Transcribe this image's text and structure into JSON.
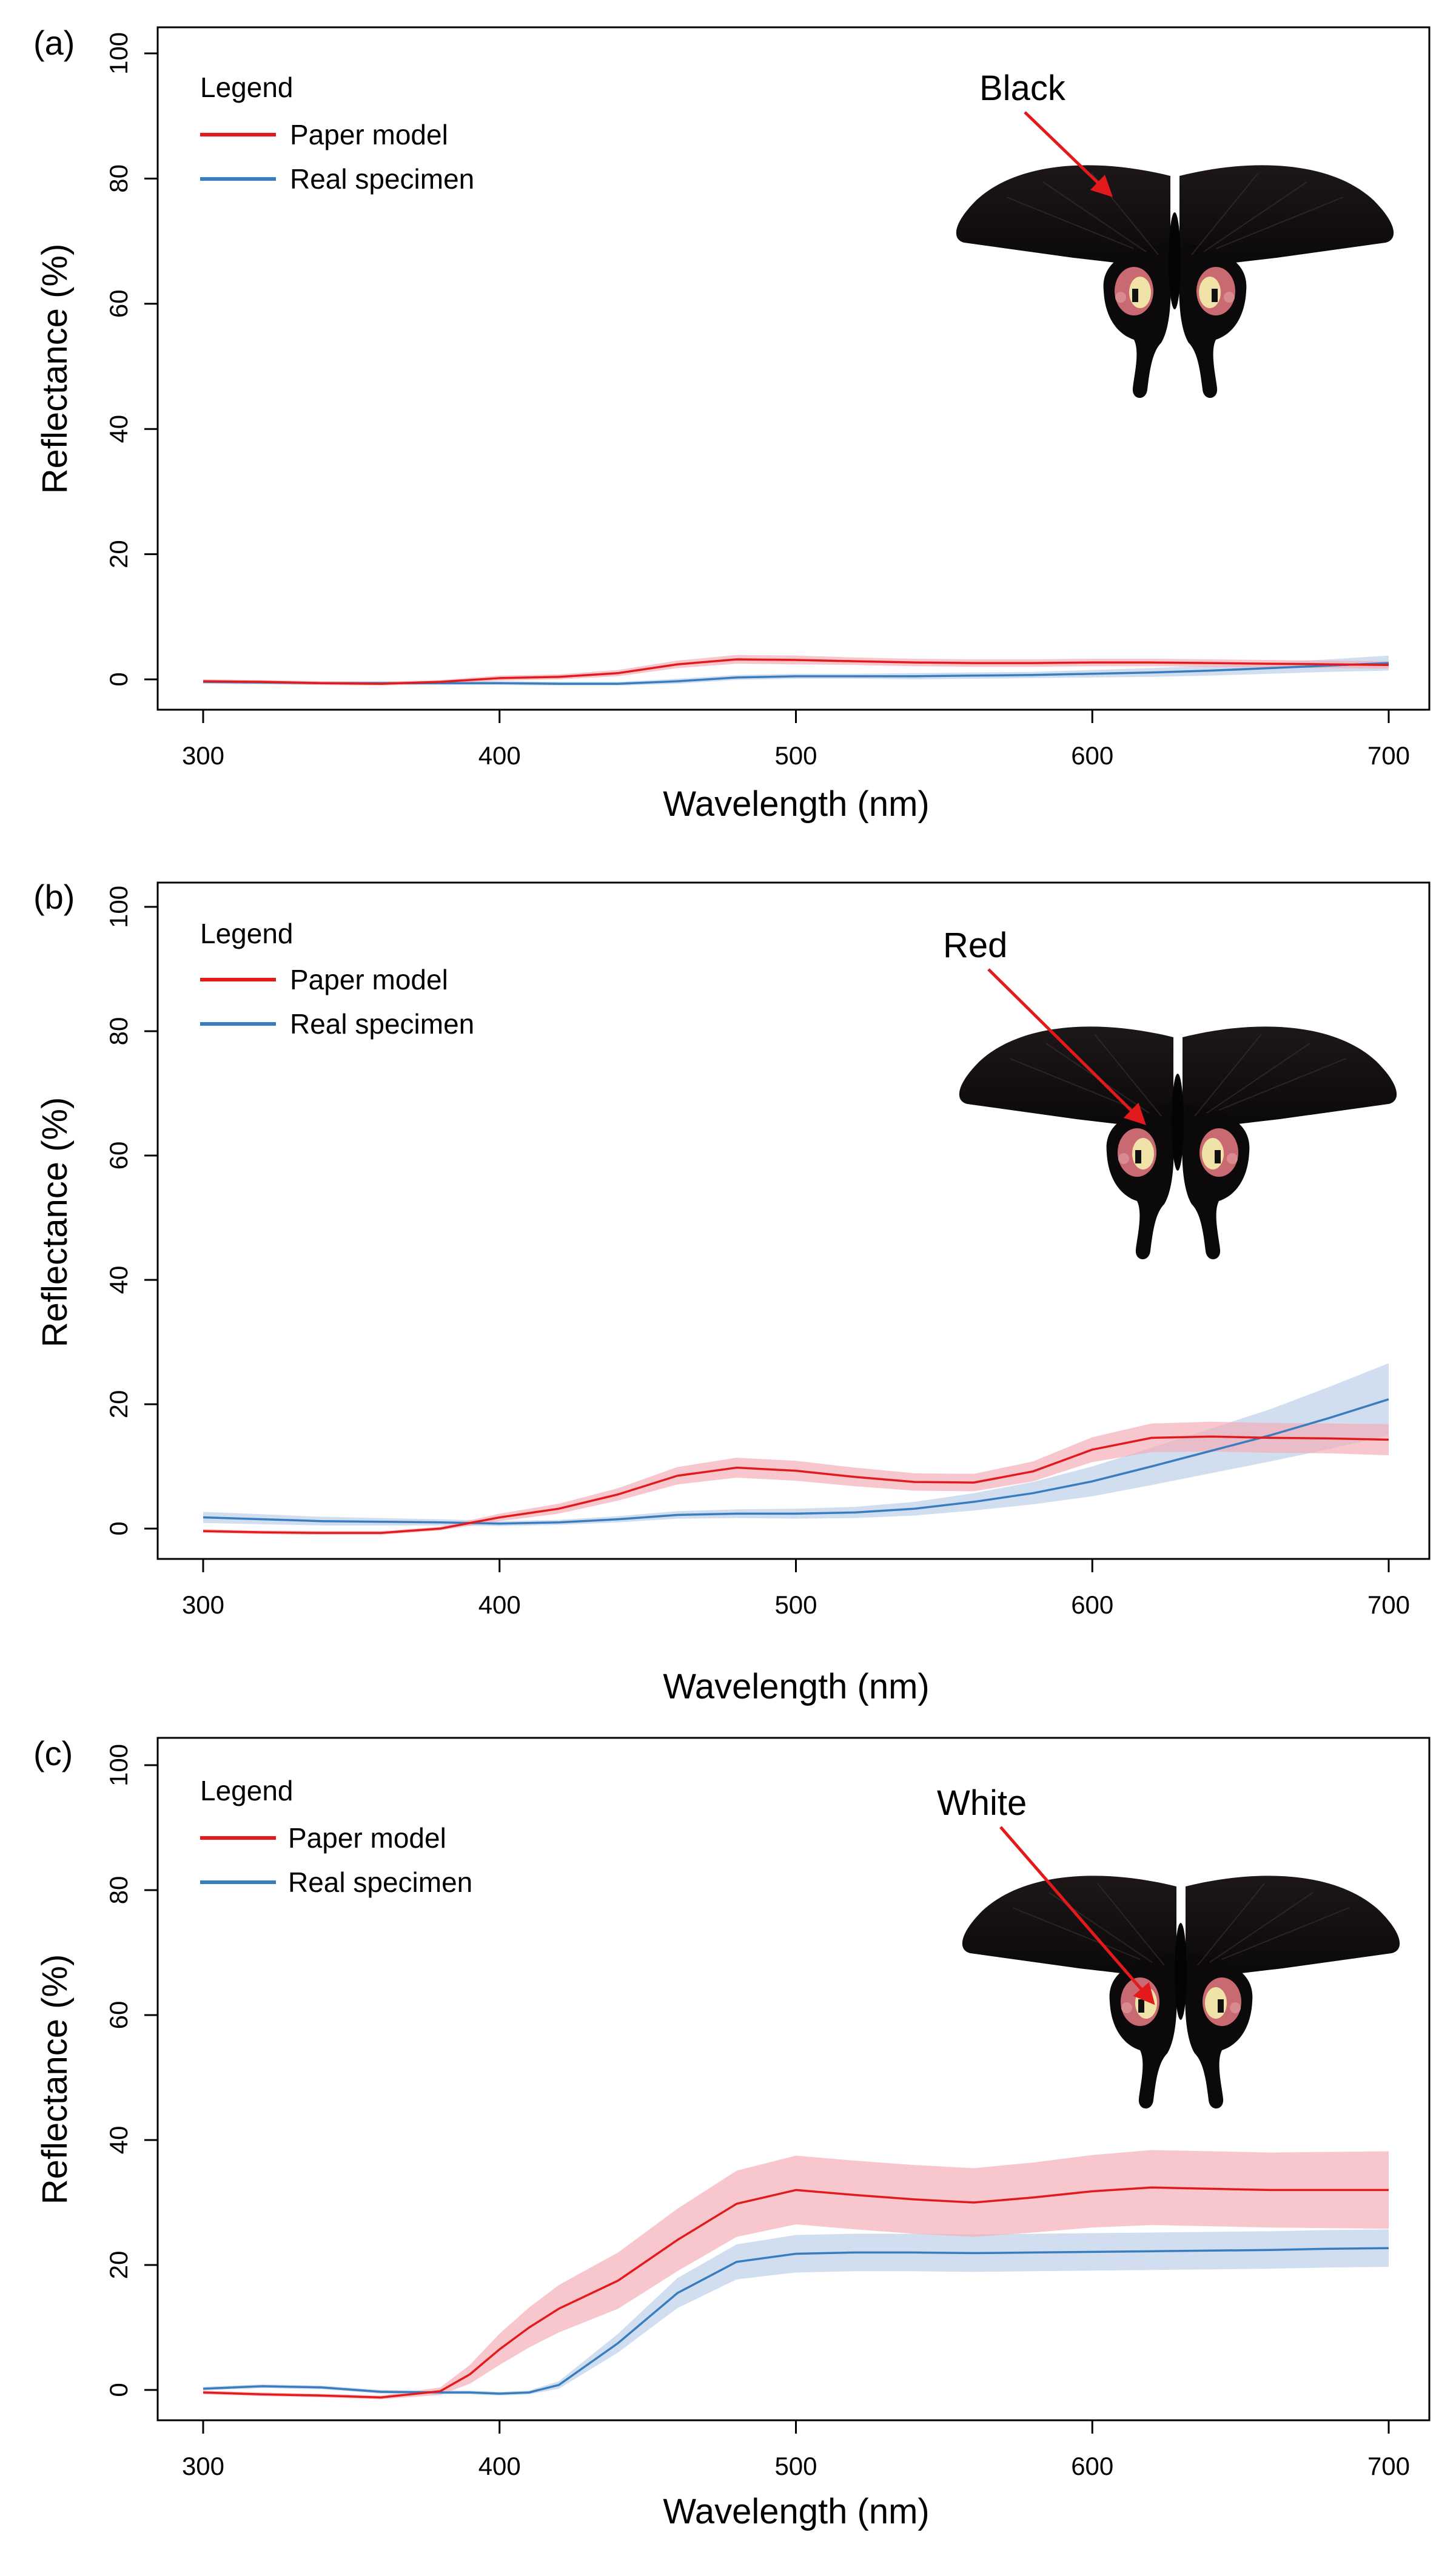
{
  "colors": {
    "paper": "#e31a1c",
    "paper_band": "#f4a9b4",
    "real": "#3a7dbf",
    "real_band": "#b9cde6"
  },
  "chart_data": [
    {
      "type": "line",
      "panel": "(a)",
      "legend": {
        "title": "Legend",
        "entries": [
          "Paper model",
          "Real specimen"
        ],
        "placement": "top-left"
      },
      "annotation": "Black",
      "xlabel": "Wavelength (nm)",
      "ylabel": "Reflectance (%)",
      "xlim": [
        300,
        700
      ],
      "ylim": [
        0,
        100
      ],
      "xticks": [
        300,
        400,
        500,
        600,
        700
      ],
      "yticks": [
        0,
        20,
        40,
        60,
        80,
        100
      ],
      "x": [
        300,
        320,
        340,
        360,
        380,
        400,
        420,
        440,
        460,
        480,
        500,
        520,
        540,
        560,
        580,
        600,
        620,
        640,
        660,
        680,
        700
      ],
      "series": [
        {
          "name": "Paper model",
          "values": [
            -0.3,
            -0.4,
            -0.6,
            -0.7,
            -0.4,
            0.2,
            0.4,
            1.0,
            2.4,
            3.2,
            3.1,
            2.9,
            2.7,
            2.6,
            2.6,
            2.7,
            2.7,
            2.6,
            2.5,
            2.4,
            2.3
          ],
          "band": [
            0.3,
            0.3,
            0.3,
            0.3,
            0.3,
            0.4,
            0.4,
            0.5,
            0.6,
            0.7,
            0.7,
            0.6,
            0.6,
            0.6,
            0.6,
            0.6,
            0.6,
            0.6,
            0.6,
            0.6,
            0.6
          ]
        },
        {
          "name": "Real specimen",
          "values": [
            -0.4,
            -0.5,
            -0.6,
            -0.6,
            -0.6,
            -0.6,
            -0.7,
            -0.7,
            -0.3,
            0.3,
            0.5,
            0.5,
            0.5,
            0.6,
            0.7,
            0.9,
            1.1,
            1.4,
            1.8,
            2.2,
            2.6
          ],
          "band": [
            0.3,
            0.3,
            0.3,
            0.3,
            0.3,
            0.3,
            0.3,
            0.3,
            0.4,
            0.4,
            0.4,
            0.4,
            0.5,
            0.5,
            0.5,
            0.6,
            0.7,
            0.8,
            0.9,
            1.0,
            1.2
          ]
        }
      ]
    },
    {
      "type": "line",
      "panel": "(b)",
      "legend": {
        "title": "Legend",
        "entries": [
          "Paper model",
          "Real specimen"
        ],
        "placement": "top-left"
      },
      "annotation": "Red",
      "xlabel": "Wavelength (nm)",
      "ylabel": "Reflectance (%)",
      "xlim": [
        300,
        700
      ],
      "ylim": [
        0,
        100
      ],
      "xticks": [
        300,
        400,
        500,
        600,
        700
      ],
      "yticks": [
        0,
        20,
        40,
        60,
        80,
        100
      ],
      "x": [
        300,
        320,
        340,
        360,
        380,
        400,
        420,
        440,
        460,
        480,
        500,
        520,
        540,
        560,
        580,
        600,
        620,
        640,
        660,
        680,
        700
      ],
      "series": [
        {
          "name": "Paper model",
          "values": [
            -0.4,
            -0.6,
            -0.7,
            -0.7,
            0.0,
            1.8,
            3.2,
            5.5,
            8.5,
            9.8,
            9.3,
            8.3,
            7.5,
            7.4,
            9.2,
            12.7,
            14.6,
            14.8,
            14.6,
            14.5,
            14.3
          ],
          "band": [
            0.3,
            0.3,
            0.3,
            0.3,
            0.3,
            0.6,
            0.8,
            1.0,
            1.4,
            1.6,
            1.6,
            1.5,
            1.4,
            1.4,
            1.6,
            2.0,
            2.3,
            2.4,
            2.4,
            2.4,
            2.5
          ]
        },
        {
          "name": "Real specimen",
          "values": [
            1.8,
            1.5,
            1.2,
            1.1,
            1.0,
            0.8,
            1.0,
            1.5,
            2.2,
            2.4,
            2.4,
            2.6,
            3.2,
            4.3,
            5.7,
            7.6,
            10.0,
            12.5,
            15.0,
            17.8,
            20.8
          ],
          "band": [
            0.9,
            0.8,
            0.7,
            0.6,
            0.5,
            0.4,
            0.4,
            0.5,
            0.6,
            0.7,
            0.8,
            0.9,
            1.1,
            1.4,
            1.8,
            2.4,
            3.0,
            3.6,
            4.2,
            5.0,
            5.8
          ]
        }
      ]
    },
    {
      "type": "line",
      "panel": "(c)",
      "legend": {
        "title": "Legend",
        "entries": [
          "Paper model",
          "Real specimen"
        ],
        "placement": "top-left"
      },
      "annotation": "White",
      "xlabel": "Wavelength (nm)",
      "ylabel": "Reflectance (%)",
      "xlim": [
        300,
        700
      ],
      "ylim": [
        0,
        100
      ],
      "xticks": [
        300,
        400,
        500,
        600,
        700
      ],
      "yticks": [
        0,
        20,
        40,
        60,
        80,
        100
      ],
      "x": [
        300,
        320,
        340,
        360,
        380,
        390,
        400,
        410,
        420,
        440,
        460,
        480,
        500,
        520,
        540,
        560,
        580,
        600,
        620,
        640,
        660,
        680,
        700
      ],
      "series": [
        {
          "name": "Paper model",
          "values": [
            -0.4,
            -0.7,
            -0.9,
            -1.2,
            -0.2,
            2.5,
            6.5,
            10.0,
            13.0,
            17.5,
            24.0,
            29.8,
            32.0,
            31.2,
            30.5,
            30.0,
            30.8,
            31.8,
            32.4,
            32.2,
            32.0,
            32.0,
            32.0
          ],
          "band": [
            0.3,
            0.3,
            0.3,
            0.3,
            0.6,
            1.5,
            2.5,
            3.2,
            3.8,
            4.5,
            5.0,
            5.3,
            5.5,
            5.5,
            5.5,
            5.5,
            5.6,
            5.8,
            6.0,
            6.0,
            6.0,
            6.1,
            6.2
          ]
        },
        {
          "name": "Real specimen",
          "values": [
            0.2,
            0.6,
            0.4,
            -0.3,
            -0.4,
            -0.4,
            -0.6,
            -0.4,
            0.8,
            7.5,
            15.5,
            20.5,
            21.8,
            22.0,
            22.0,
            21.9,
            22.0,
            22.1,
            22.2,
            22.3,
            22.4,
            22.6,
            22.7
          ],
          "band": [
            0.3,
            0.3,
            0.3,
            0.3,
            0.3,
            0.3,
            0.3,
            0.3,
            0.6,
            1.5,
            2.4,
            2.8,
            3.0,
            3.0,
            3.0,
            3.0,
            3.0,
            3.0,
            3.0,
            3.0,
            3.0,
            3.0,
            3.0
          ]
        }
      ]
    }
  ]
}
